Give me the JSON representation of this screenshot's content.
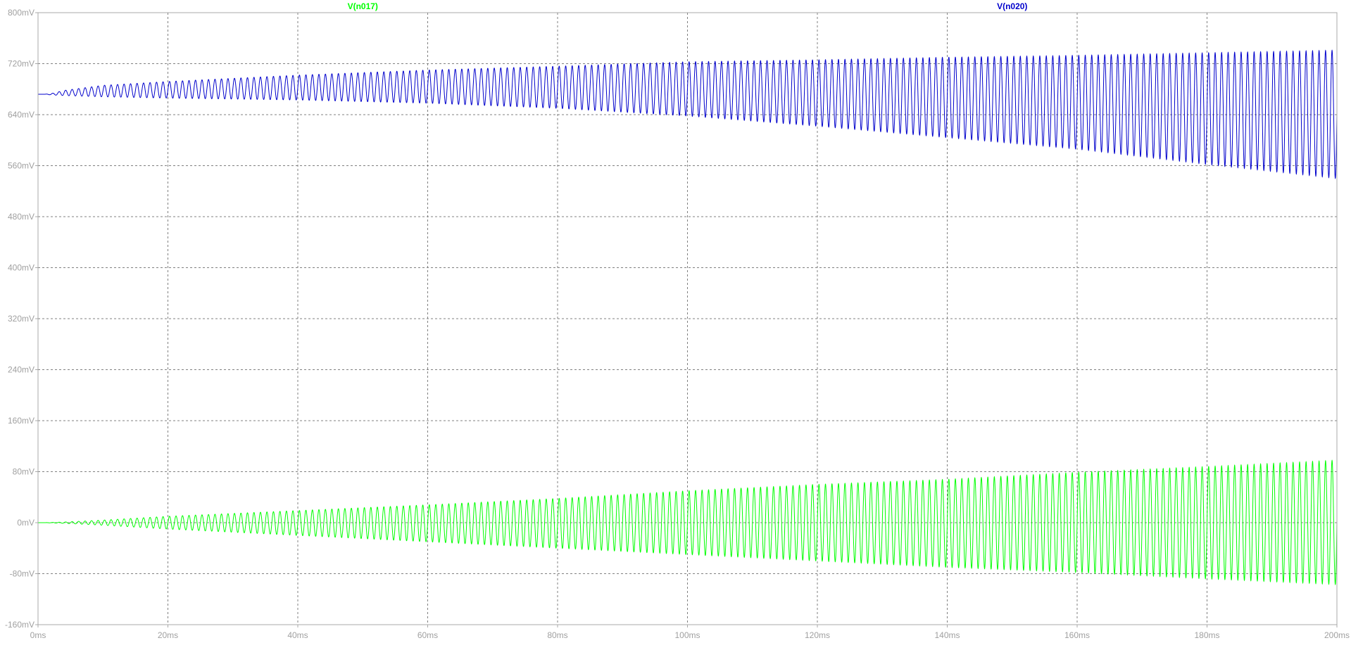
{
  "chart_data": {
    "type": "line",
    "x_unit": "ms",
    "y_unit": "mV",
    "xlim": [
      0,
      200
    ],
    "ylim": [
      -160,
      800
    ],
    "x_ticks": [
      0,
      20,
      40,
      60,
      80,
      100,
      120,
      140,
      160,
      180,
      200
    ],
    "y_ticks": [
      800,
      720,
      640,
      560,
      480,
      400,
      320,
      240,
      160,
      80,
      0,
      -80,
      -160
    ],
    "x_tick_labels": [
      "0ms",
      "20ms",
      "40ms",
      "60ms",
      "80ms",
      "100ms",
      "120ms",
      "140ms",
      "160ms",
      "180ms",
      "200ms"
    ],
    "y_tick_labels": [
      "800mV",
      "720mV",
      "640mV",
      "560mV",
      "480mV",
      "400mV",
      "320mV",
      "240mV",
      "160mV",
      "80mV",
      "0mV",
      "-80mV",
      "-160mV"
    ],
    "grid": true,
    "cycles_in_window": 200,
    "series": [
      {
        "name": "V(n017)",
        "color": "#00ff00",
        "baseline_mV": 0,
        "upper_envelope": {
          "x": [
            0,
            1,
            4,
            10,
            20,
            40,
            60,
            80,
            100,
            120,
            140,
            160,
            180,
            200
          ],
          "y": [
            0,
            0,
            1,
            4,
            10,
            19,
            28,
            38,
            50,
            60,
            68,
            79,
            88,
            98
          ]
        },
        "lower_envelope": {
          "x": [
            0,
            1,
            4,
            10,
            20,
            40,
            60,
            80,
            100,
            120,
            140,
            160,
            180,
            200
          ],
          "y": [
            0,
            0,
            -1,
            -4,
            -10,
            -20,
            -30,
            -40,
            -50,
            -60,
            -70,
            -78,
            -88,
            -97
          ]
        }
      },
      {
        "name": "V(n020)",
        "color": "#0000cc",
        "baseline_mV": 672,
        "upper_envelope": {
          "x": [
            0,
            1,
            2,
            4,
            10,
            20,
            40,
            60,
            80,
            100,
            120,
            140,
            160,
            180,
            200
          ],
          "y": [
            672,
            672,
            673,
            678,
            686,
            692,
            702,
            710,
            716,
            723,
            726,
            730,
            733,
            737,
            741
          ]
        },
        "lower_envelope": {
          "x": [
            0,
            1,
            2,
            4,
            10,
            20,
            40,
            60,
            80,
            100,
            120,
            140,
            160,
            180,
            200
          ],
          "y": [
            672,
            672,
            671,
            670,
            668,
            666,
            663,
            658,
            650,
            638,
            622,
            604,
            586,
            562,
            540
          ]
        }
      }
    ]
  }
}
